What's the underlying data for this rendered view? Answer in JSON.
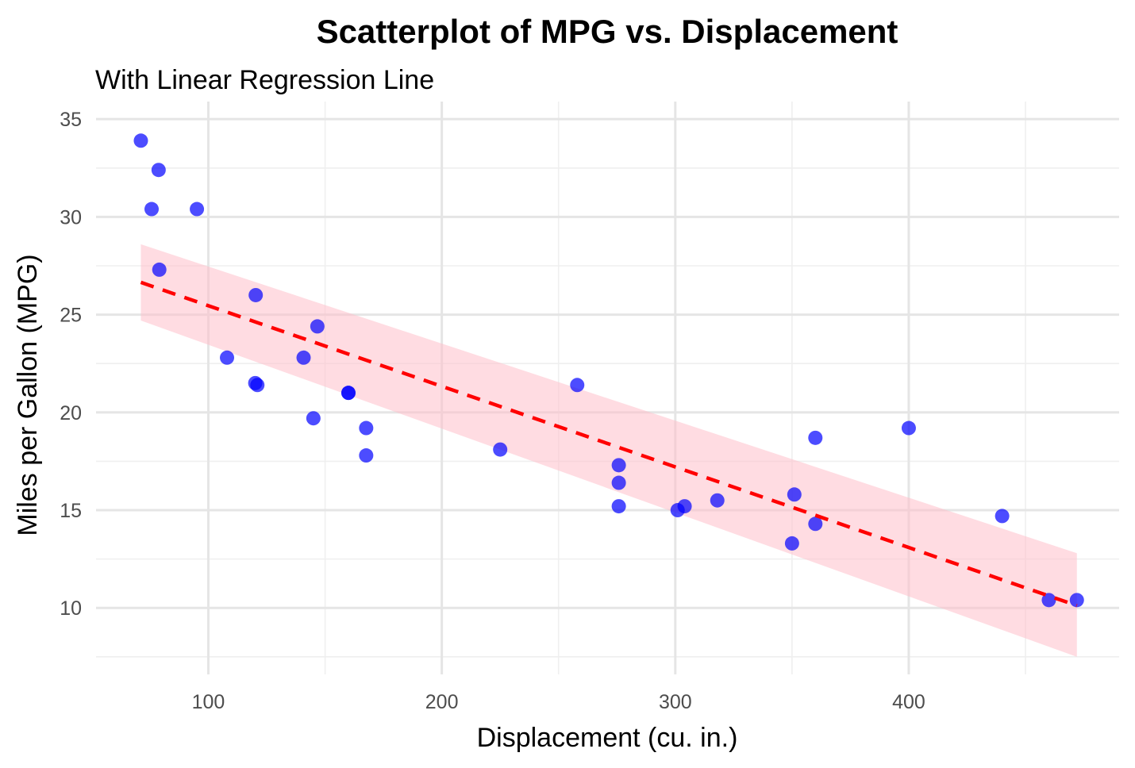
{
  "chart_data": {
    "type": "scatter",
    "title": "Scatterplot of MPG vs. Displacement",
    "subtitle": "With Linear Regression Line",
    "xlabel": "Displacement (cu. in.)",
    "ylabel": "Miles per Gallon (MPG)",
    "xlim": [
      51.9,
      490.1
    ],
    "ylim": [
      6.6,
      35.9
    ],
    "x_ticks": [
      100,
      200,
      300,
      400
    ],
    "y_ticks": [
      10,
      15,
      20,
      25,
      30,
      35
    ],
    "grid": true,
    "legend": "none",
    "point_color": "#0000ff",
    "ci_color": "#ffc0cb",
    "line_color": "#ff0000",
    "points": [
      {
        "x": 71.1,
        "y": 33.9
      },
      {
        "x": 78.7,
        "y": 32.4
      },
      {
        "x": 75.7,
        "y": 30.4
      },
      {
        "x": 95.1,
        "y": 30.4
      },
      {
        "x": 79.0,
        "y": 27.3
      },
      {
        "x": 120.3,
        "y": 26.0
      },
      {
        "x": 146.7,
        "y": 24.4
      },
      {
        "x": 108.0,
        "y": 22.8
      },
      {
        "x": 140.8,
        "y": 22.8
      },
      {
        "x": 120.1,
        "y": 21.5
      },
      {
        "x": 121.0,
        "y": 21.4
      },
      {
        "x": 258.0,
        "y": 21.4
      },
      {
        "x": 160.0,
        "y": 21.0
      },
      {
        "x": 160.0,
        "y": 21.0
      },
      {
        "x": 145.0,
        "y": 19.7
      },
      {
        "x": 167.6,
        "y": 19.2
      },
      {
        "x": 400.0,
        "y": 19.2
      },
      {
        "x": 360.0,
        "y": 18.7
      },
      {
        "x": 225.0,
        "y": 18.1
      },
      {
        "x": 167.6,
        "y": 17.8
      },
      {
        "x": 275.8,
        "y": 17.3
      },
      {
        "x": 275.8,
        "y": 16.4
      },
      {
        "x": 351.0,
        "y": 15.8
      },
      {
        "x": 318.0,
        "y": 15.5
      },
      {
        "x": 275.8,
        "y": 15.2
      },
      {
        "x": 304.0,
        "y": 15.2
      },
      {
        "x": 301.0,
        "y": 15.0
      },
      {
        "x": 440.0,
        "y": 14.7
      },
      {
        "x": 360.0,
        "y": 14.3
      },
      {
        "x": 350.0,
        "y": 13.3
      },
      {
        "x": 460.0,
        "y": 10.4
      },
      {
        "x": 472.0,
        "y": 10.4
      }
    ],
    "regression": {
      "x_range": [
        71.1,
        472.0
      ],
      "fit": [
        26.65,
        10.12
      ],
      "ci_upper": [
        28.6,
        12.8
      ],
      "ci_lower": [
        24.7,
        7.5
      ]
    }
  }
}
